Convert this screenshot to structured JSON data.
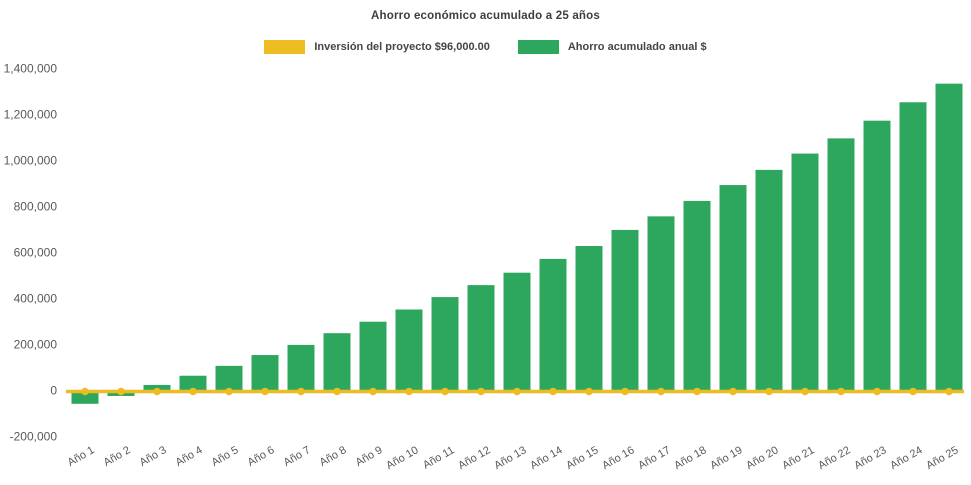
{
  "title": "Ahorro económico acumulado a 25 años",
  "legend": {
    "investment_label": "Inversión del proyecto $96,000.00",
    "savings_label": "Ahorro acumulado anual $"
  },
  "colors": {
    "investment_yellow": "#EDBB22",
    "savings_green": "#2DA75E",
    "title_text": "#3D3D3D",
    "axis_text": "#595959"
  },
  "chart_data": {
    "type": "bar",
    "title": "Ahorro económico acumulado a 25 años",
    "xlabel": "",
    "ylabel": "",
    "categories": [
      "Año 1",
      "Año 2",
      "Año 3",
      "Año 4",
      "Año 5",
      "Año 6",
      "Año 7",
      "Año 8",
      "Año 9",
      "Año 10",
      "Año 11",
      "Año 12",
      "Año 13",
      "Año 14",
      "Año 15",
      "Año 16",
      "Año 17",
      "Año 18",
      "Año 19",
      "Año 20",
      "Año 21",
      "Año 22",
      "Año 23",
      "Año 24",
      "Año 25"
    ],
    "series": [
      {
        "name": "Inversión del proyecto $96,000.00",
        "type": "line",
        "color": "#EDBB22",
        "marker": "circle",
        "values": [
          0,
          0,
          0,
          0,
          0,
          0,
          0,
          0,
          0,
          0,
          0,
          0,
          0,
          0,
          0,
          0,
          0,
          0,
          0,
          0,
          0,
          0,
          0,
          0,
          0
        ]
      },
      {
        "name": "Ahorro acumulado anual $",
        "type": "bar",
        "color": "#2DA75E",
        "values": [
          -60000,
          -26000,
          22000,
          62000,
          105000,
          152000,
          196000,
          247000,
          297000,
          350000,
          404000,
          456000,
          510000,
          570000,
          626000,
          696000,
          755000,
          822000,
          891000,
          957000,
          1028000,
          1094000,
          1171000,
          1251000,
          1332000
        ]
      }
    ],
    "ylim": [
      -200000,
      1400000
    ],
    "ytick_step": 200000,
    "ytick_format": "thousands-comma",
    "grid": false,
    "legend_position": "top",
    "x_label_rotation_deg": -30
  }
}
